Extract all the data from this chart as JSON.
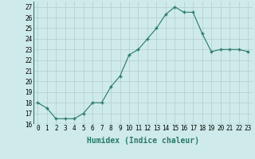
{
  "x": [
    0,
    1,
    2,
    3,
    4,
    5,
    6,
    7,
    8,
    9,
    10,
    11,
    12,
    13,
    14,
    15,
    16,
    17,
    18,
    19,
    20,
    21,
    22,
    23
  ],
  "y": [
    18.0,
    17.5,
    16.5,
    16.5,
    16.5,
    17.0,
    18.0,
    18.0,
    19.5,
    20.5,
    22.5,
    23.0,
    24.0,
    25.0,
    26.3,
    27.0,
    26.5,
    26.5,
    24.5,
    22.8,
    23.0,
    23.0,
    23.0,
    22.8
  ],
  "xlabel": "Humidex (Indice chaleur)",
  "xlim": [
    -0.5,
    23.5
  ],
  "ylim": [
    16,
    27.5
  ],
  "yticks": [
    16,
    17,
    18,
    19,
    20,
    21,
    22,
    23,
    24,
    25,
    26,
    27
  ],
  "xtick_labels": [
    "0",
    "1",
    "2",
    "3",
    "4",
    "5",
    "6",
    "7",
    "8",
    "9",
    "10",
    "11",
    "12",
    "13",
    "14",
    "15",
    "16",
    "17",
    "18",
    "19",
    "20",
    "21",
    "22",
    "23"
  ],
  "line_color": "#2a7a65",
  "bg_color": "#ceeaea",
  "grid_color": "#b0cccc",
  "xlabel_fontsize": 7,
  "tick_fontsize": 5.5
}
